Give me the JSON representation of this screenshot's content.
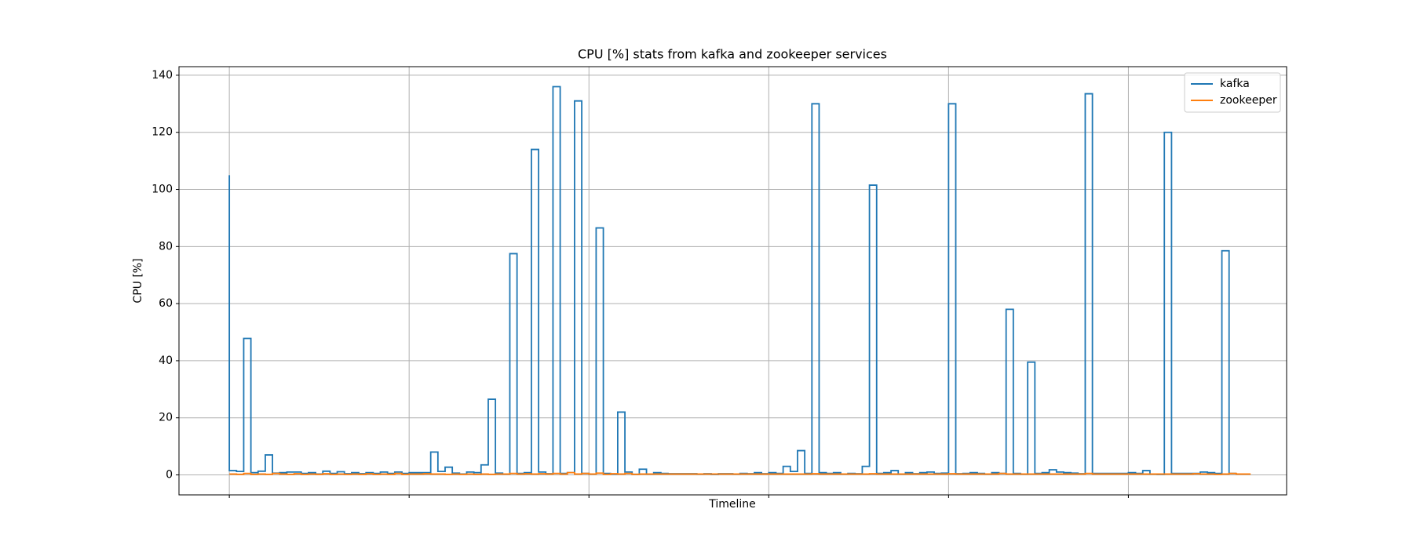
{
  "chart_data": {
    "type": "line",
    "drawstyle": "steps-pre",
    "title": "CPU [%] stats from kafka and zookeeper services",
    "xlabel": "Timeline",
    "ylabel": "CPU [%]",
    "xlim": [
      -7,
      147
    ],
    "xticks": [
      0,
      25,
      50,
      75,
      100,
      125
    ],
    "ylim": [
      -7,
      143
    ],
    "yticks": [
      0,
      20,
      40,
      60,
      80,
      100,
      120,
      140
    ],
    "grid": true,
    "legend": "upper right",
    "series": [
      {
        "name": "kafka",
        "color": "#1f77b4",
        "values": [
          105,
          1.5,
          1.2,
          47.8,
          0.8,
          1.3,
          7,
          0.6,
          0.8,
          1.0,
          1.0,
          0.5,
          0.8,
          0.3,
          1.3,
          0.5,
          1.1,
          0.4,
          0.8,
          0.4,
          0.8,
          0.5,
          1.0,
          0.5,
          1.0,
          0.5,
          0.8,
          0.8,
          0.8,
          8,
          1.2,
          2.7,
          0.6,
          0.3,
          1.0,
          0.8,
          3.5,
          26.5,
          0.6,
          0.3,
          77.5,
          0.5,
          0.8,
          114,
          1.0,
          0.4,
          136,
          0.5,
          0.8,
          131,
          0.5,
          0.3,
          86.5,
          0.5,
          0.3,
          22,
          1.0,
          0.2,
          2,
          0.3,
          0.8,
          0.5,
          0.4,
          0.4,
          0.4,
          0.4,
          0.3,
          0.4,
          0.2,
          0.4,
          0.4,
          0.3,
          0.5,
          0.4,
          0.8,
          0.4,
          0.8,
          0.5,
          3,
          1.2,
          8.5,
          0.5,
          130,
          0.8,
          0.5,
          0.8,
          0.3,
          0.5,
          0.4,
          3,
          101.5,
          0.5,
          0.8,
          1.5,
          0.3,
          0.8,
          0.4,
          0.8,
          1.0,
          0.5,
          0.6,
          130,
          0.4,
          0.5,
          0.8,
          0.5,
          0.3,
          0.8,
          0.5,
          58,
          0.5,
          0.3,
          39.5,
          0.5,
          0.8,
          1.8,
          1.0,
          0.8,
          0.6,
          0.4,
          133.5,
          0.5,
          0.5,
          0.5,
          0.5,
          0.5,
          0.8,
          0.5,
          1.5,
          0.3,
          0.2,
          120,
          0.5,
          0.5,
          0.5,
          0.5,
          1.0,
          0.8,
          0.5,
          78.5,
          0.5
        ]
      },
      {
        "name": "zookeeper",
        "color": "#ff7f0e",
        "values": [
          0.3,
          0.3,
          0.2,
          0.5,
          0.2,
          0.3,
          0.2,
          0.5,
          0.3,
          0.2,
          0.4,
          0.2,
          0.3,
          0.2,
          0.4,
          0.2,
          0.3,
          0.2,
          0.3,
          0.2,
          0.4,
          0.2,
          0.3,
          0.2,
          0.5,
          0.2,
          0.3,
          0.3,
          0.4,
          0.3,
          0.3,
          0.2,
          0.3,
          0.2,
          0.3,
          0.2,
          0.3,
          0.2,
          0.3,
          0.3,
          0.5,
          0.3,
          0.4,
          0.3,
          0.4,
          0.3,
          0.5,
          0.3,
          0.8,
          0.3,
          0.5,
          0.3,
          0.6,
          0.2,
          0.4,
          0.3,
          0.5,
          0.2,
          0.3,
          0.3,
          0.3,
          0.3,
          0.3,
          0.3,
          0.3,
          0.3,
          0.3,
          0.3,
          0.3,
          0.3,
          0.3,
          0.3,
          0.3,
          0.3,
          0.3,
          0.3,
          0.3,
          0.3,
          0.3,
          0.3,
          0.3,
          0.3,
          0.4,
          0.3,
          0.3,
          0.3,
          0.3,
          0.3,
          0.3,
          0.3,
          0.4,
          0.3,
          0.3,
          0.3,
          0.3,
          0.3,
          0.3,
          0.3,
          0.3,
          0.3,
          0.3,
          0.4,
          0.3,
          0.3,
          0.3,
          0.3,
          0.3,
          0.3,
          0.5,
          0.3,
          0.3,
          0.3,
          0.3,
          0.3,
          0.3,
          0.3,
          0.3,
          0.3,
          0.3,
          0.3,
          0.5,
          0.3,
          0.3,
          0.3,
          0.3,
          0.3,
          0.3,
          0.3,
          0.3,
          0.3,
          0.3,
          0.3,
          0.3,
          0.3,
          0.3,
          0.4,
          0.3,
          0.3,
          0.2,
          0.3,
          0.5,
          0.3,
          0.3
        ]
      }
    ]
  }
}
